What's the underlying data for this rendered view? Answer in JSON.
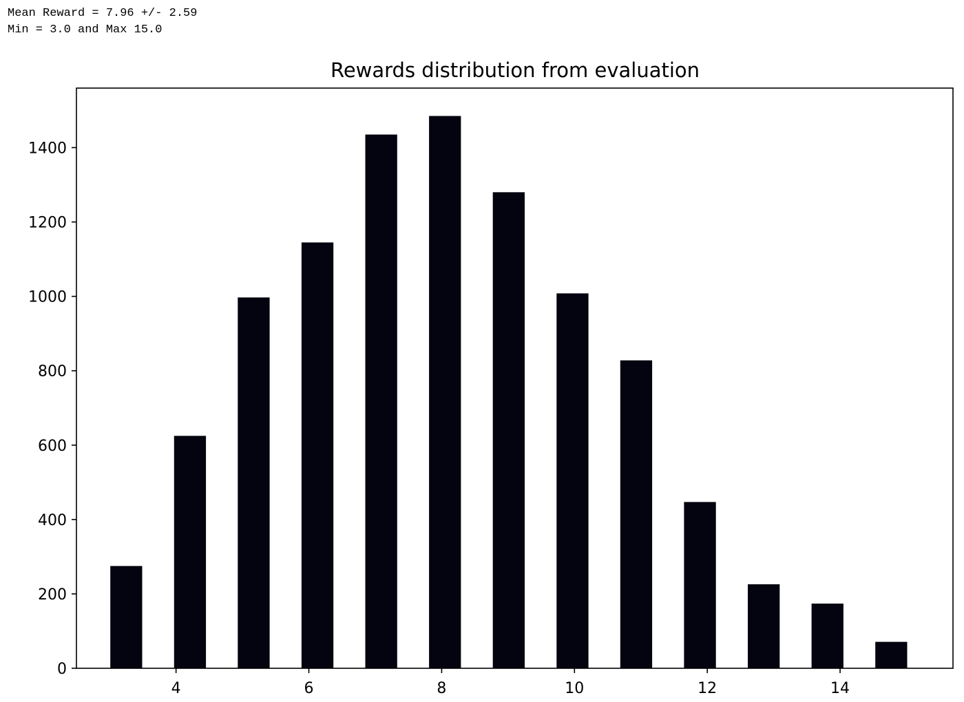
{
  "header_text": {
    "line1": "Mean Reward = 7.96 +/- 2.59",
    "line2": "Min = 3.0 and Max 15.0"
  },
  "chart_data": {
    "type": "bar",
    "title": "Rewards distribution from evaluation",
    "xlabel": "",
    "ylabel": "",
    "x": [
      3.25,
      4.21,
      5.17,
      6.13,
      7.09,
      8.05,
      9.01,
      9.97,
      10.93,
      11.89,
      12.85,
      13.81,
      14.77
    ],
    "values": [
      275,
      625,
      997,
      1145,
      1435,
      1485,
      1280,
      1008,
      828,
      447,
      226,
      174,
      71
    ],
    "bar_width": 0.48,
    "xlim": [
      2.5,
      15.7
    ],
    "ylim": [
      0,
      1560
    ],
    "xticks": [
      4,
      6,
      8,
      10,
      12,
      14
    ],
    "yticks": [
      0,
      200,
      400,
      600,
      800,
      1000,
      1200,
      1400
    ],
    "grid": false,
    "bar_color": "#03040f"
  }
}
